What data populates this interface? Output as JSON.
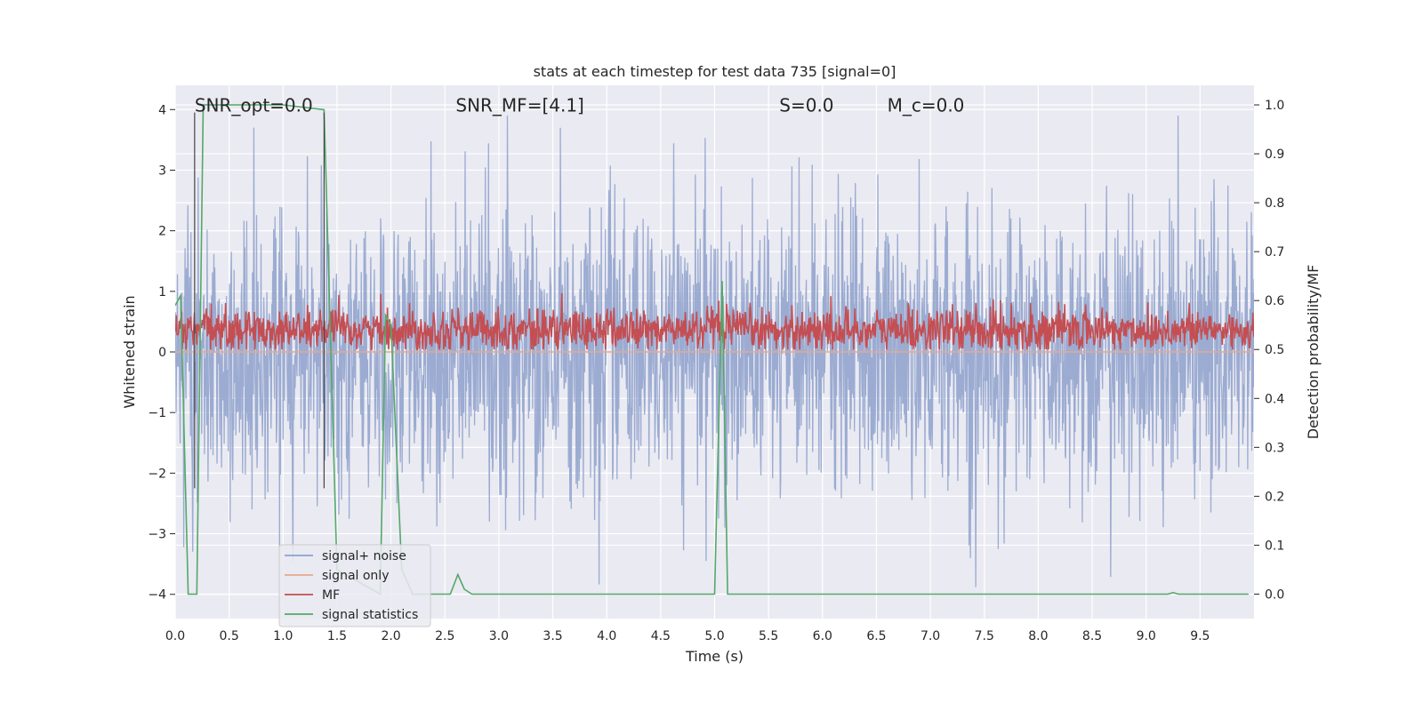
{
  "chart_data": {
    "type": "line",
    "title": "stats at each timestep for test data 735 [signal=0]",
    "xlabel": "Time (s)",
    "ylabel": "Whitened strain",
    "y2label": "Detection probability/MF",
    "xlim": [
      0.0,
      10.0
    ],
    "ylim": [
      -4.4,
      4.4
    ],
    "y2lim": [
      -0.05,
      1.04
    ],
    "x_ticks": [
      0.0,
      0.5,
      1.0,
      1.5,
      2.0,
      2.5,
      3.0,
      3.5,
      4.0,
      4.5,
      5.0,
      5.5,
      6.0,
      6.5,
      7.0,
      7.5,
      8.0,
      8.5,
      9.0,
      9.5
    ],
    "x_tick_labels": [
      "0.0",
      "0.5",
      "1.0",
      "1.5",
      "2.0",
      "2.5",
      "3.0",
      "3.5",
      "4.0",
      "4.5",
      "5.0",
      "5.5",
      "6.0",
      "6.5",
      "7.0",
      "7.5",
      "8.0",
      "8.5",
      "9.0",
      "9.5"
    ],
    "y_ticks": [
      4,
      3,
      2,
      1,
      0,
      -1,
      -2,
      -3,
      -4
    ],
    "y_tick_labels": [
      "4",
      "3",
      "2",
      "1",
      "0",
      "−1",
      "−2",
      "−3",
      "−4"
    ],
    "y2_ticks": [
      1.0,
      0.9,
      0.8,
      0.7,
      0.6,
      0.5,
      0.4,
      0.3,
      0.2,
      0.1,
      0.0
    ],
    "y2_tick_labels": [
      "1.0",
      "0.9",
      "0.8",
      "0.7",
      "0.6",
      "0.5",
      "0.4",
      "0.3",
      "0.2",
      "0.1",
      "0.0"
    ],
    "grid": true,
    "legend_placement": "lower-left",
    "annotations": [
      {
        "id": "snr-opt",
        "text": "SNR_opt=0.0",
        "x": 0.18
      },
      {
        "id": "snr-mf",
        "text": "SNR_MF=[4.1]",
        "x": 2.6
      },
      {
        "id": "s",
        "text": "S=0.0",
        "x": 5.6
      },
      {
        "id": "mc",
        "text": "M_c=0.0",
        "x": 6.6
      }
    ],
    "vertical_markers": [
      0.18,
      1.38
    ],
    "series": [
      {
        "name": "signal+ noise",
        "color": "#8da0cb",
        "axis": "left",
        "kind": "noise",
        "description_values": {
          "mean": 0.0,
          "typical_abs_max": 3.0,
          "peak_max": 3.9,
          "peak_min": -3.9
        }
      },
      {
        "name": "signal only",
        "color": "#e8a88e",
        "axis": "left",
        "kind": "flat",
        "x": [
          0,
          10
        ],
        "y": [
          0,
          0
        ]
      },
      {
        "name": "MF",
        "color": "#c44e52",
        "axis": "right",
        "kind": "noise",
        "description_values": {
          "mean": 0.54,
          "typical_min": 0.51,
          "typical_max": 0.59,
          "peak_max": 0.62
        }
      },
      {
        "name": "signal statistics",
        "color": "#55a868",
        "axis": "right",
        "kind": "line",
        "x": [
          0.0,
          0.05,
          0.12,
          0.2,
          0.26,
          1.0,
          1.38,
          1.5,
          1.9,
          1.95,
          2.0,
          2.1,
          2.2,
          2.55,
          2.62,
          2.68,
          2.75,
          5.0,
          5.07,
          5.12,
          9.2,
          9.25,
          9.3,
          9.95
        ],
        "y": [
          0.59,
          0.61,
          0.0,
          0.0,
          1.0,
          1.0,
          0.99,
          0.05,
          0.0,
          0.57,
          0.55,
          0.05,
          0.0,
          0.0,
          0.04,
          0.01,
          0.0,
          0.0,
          0.64,
          0.0,
          0.0,
          0.003,
          0.0,
          0.0
        ]
      }
    ]
  }
}
